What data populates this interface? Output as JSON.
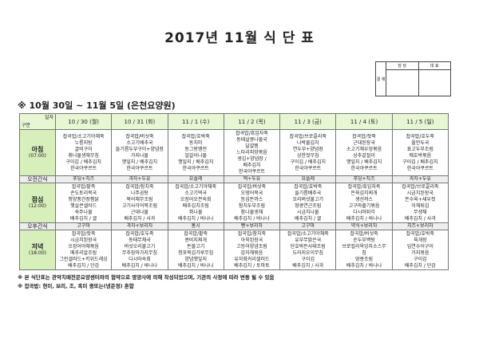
{
  "title": "2017년 11월 식 단 표",
  "approval": {
    "label": "결 재",
    "col1": "담 당",
    "col2": "대 표"
  },
  "section": "※ 10월 30일 ~ 11월 5일 (은천요양원)",
  "corner": {
    "top": "일자",
    "bottom": "구분"
  },
  "days": [
    "10 / 30 (월)",
    "10 / 31 (화)",
    "11 / 1 (수)",
    "11 / 2 (목)",
    "11 / 3 (금)",
    "11 / 4 (토)",
    "11 / 5 (일)"
  ],
  "breakfast": {
    "label": "아침",
    "time": "(07:00)",
    "menus": [
      [
        "잡곡밥/소고기야채죽",
        "누룽지탕",
        "굴비구이",
        "취나물생채무침",
        "구이김 / 배추김치",
        "한국야쿠르트"
      ],
      [
        "잡곡밥/버섯죽",
        "소고기배추국",
        "들기름두부구이+양념장",
        "가지나물",
        "깻잎지 / 배추김치",
        "한국야쿠르트"
      ],
      [
        "잡곡밥/호박죽",
        "동치미",
        "동그랑땡전",
        "얼갈이나물",
        "깻잎지 / 배추김치",
        "한국야쿠르트"
      ],
      [
        "잡곡밥/흑임자죽",
        "동태살콩나물국",
        "달걀찜",
        "느타리피망볶음",
        "생김+양념장 /",
        "배추김치",
        "한국야쿠르트"
      ],
      [
        "잡곡밥/브로콜리죽",
        "나박물김치",
        "연두부+양념장",
        "상한젓무침",
        "구이김 / 배추김치",
        "한국야쿠르트"
      ],
      [
        "잡곡밥/잣죽",
        "근대된장국",
        "소고기채우엉볶음",
        "상추겉절이",
        "깻잎지 / 배추김치",
        "한국야쿠르트"
      ],
      [
        "잡곡밥/호두죽",
        "올만두국",
        "표고두부조림",
        "애호박볶음",
        "구이김 / 배추김치",
        "한국야쿠르트"
      ]
    ]
  },
  "am_snack": {
    "label": "오전간식",
    "items": [
      "푸딩+치즈",
      "과자+두유",
      "요플레",
      "떡+두유",
      "요플레",
      "푸딩+치즈",
      "과자+두유"
    ]
  },
  "lunch": {
    "label": "점심",
    "time": "(12:00)",
    "menus": [
      [
        "잡곡밥/팥죽",
        "손도토리묵국",
        "청양풍간장찜닭",
        "햇살콘샐러드",
        "숙주나물",
        "배추김치 / 귤"
      ],
      [
        "잡곡밥/참치죽",
        "나주곰탕",
        "북어채무조림",
        "고기사각어묵조림",
        "근대나물",
        "배추김치 / 사과"
      ],
      [
        "잡곡밥/소고기야채죽",
        "소고기떡국",
        "오징어오븐숙회",
        "배추김치조림",
        "취나물",
        "배추김치 / 바나나"
      ],
      [
        "잡곡밥/버섯죽",
        "오뎅어묵국",
        "등심돈까스",
        "참치두부조림",
        "참나물생채",
        "배추김치 / 바나나"
      ],
      [
        "잡곡밥/호박죽",
        "들기름배추국",
        "오리버섯불고기",
        "땅콩연근조림",
        "시금치나물",
        "배추김치 / 귤"
      ],
      [
        "잡곡밥/흑임자죽",
        "돈육김치찌개",
        "생선까스",
        "고구마줄기볶음",
        "다시마튀각",
        "배추김치 / 바나나"
      ],
      [
        "잡곡밥/브로콜리죽",
        "시금치된장국",
        "돈수육+새우젓",
        "이채튀김",
        "무생채",
        "배추김치 / 사과"
      ]
    ]
  },
  "pm_snack": {
    "label": "오후간식",
    "items": [
      "고구마",
      "과자+보리차",
      "홍시",
      "빵+보리차",
      "고구마",
      "약식+보리차",
      "치즈+보리차"
    ]
  },
  "dinner": {
    "label": "저녁",
    "time": "(18:00)",
    "menus": [
      [
        "잡곡밥/잣죽",
        "시금치된장국",
        "오징어야채볶음",
        "메추리알조림",
        "그린샐러드+키위드레싱",
        "배추김치 / 단감"
      ],
      [
        "잡곡밥/호두죽",
        "동태무채국",
        "버섯오리불고기",
        "무추장마가지무침",
        "다시마숙회",
        "배추김치 / 바나나"
      ],
      [
        "잡곡밥/팥죽",
        "콩비지찌개",
        "돈불고기",
        "청포묵김가루무침",
        "양념깻잎지",
        "배추김치 / 바나나"
      ],
      [
        "잡곡밥/참치죽",
        "아욱된장국",
        "고등어양념조림",
        "감자채볶음",
        "유자화커리샐러드",
        "배추김치 / 토마토"
      ],
      [
        "잡곡밥/소고기야채죽",
        "유부무맑은국",
        "단호박돈사태조림",
        "도라지오이무침",
        "구이김",
        "배추김치 / 사과"
      ],
      [
        "잡곡밥/버섯죽",
        "순두부백탕",
        "브로컬리옥잉자소스무",
        "침",
        "땅콩조림",
        "배추김치 / 바나나"
      ],
      [
        "잡곡밥/호박죽",
        "육개장",
        "임연수어구이",
        "가지볶음",
        "구이김",
        "배추김치 / 단감"
      ]
    ]
  },
  "notes": [
    "※ 본 식단표는 관악치매전문요양센터와의 협약으로 영양사에 의해 작성되었으며, 기관의 사정에 따라 변동 될 수 있음",
    "※ 잡곡밥: 현미, 보리, 조, 흑미 중또는(녕준정) 혼합"
  ],
  "colors": {
    "header": "#e8f6d4",
    "label": "#d6efbb",
    "snack": "#eeeeee"
  }
}
